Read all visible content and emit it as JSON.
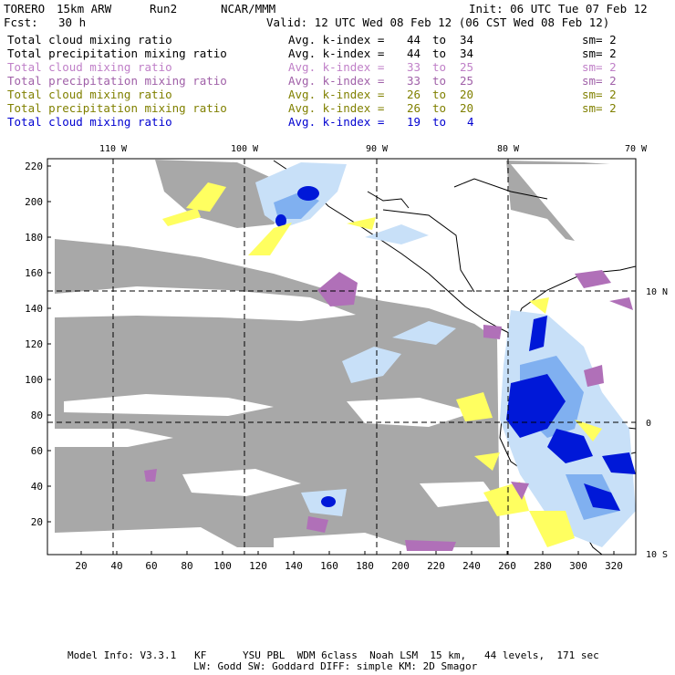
{
  "header": {
    "model": "TORERO",
    "resolution": "15km ARW",
    "run": "Run2",
    "org": "NCAR/MMM",
    "init": "Init: 06 UTC Tue 07 Feb 12",
    "fcst_label": "Fcst:",
    "fcst_value": "30 h",
    "valid": "Valid: 12 UTC Wed 08 Feb 12 (06 CST Wed 08 Feb 12)"
  },
  "legend": [
    {
      "name": "Total cloud mixing ratio",
      "kindex": "Avg. k-index =",
      "k1": "44",
      "to": "to",
      "k2": "34",
      "sm": "sm= 2",
      "color": "#000000"
    },
    {
      "name": "Total precipitation mixing ratio",
      "kindex": "Avg. k-index =",
      "k1": "44",
      "to": "to",
      "k2": "34",
      "sm": "sm= 2",
      "color": "#000000"
    },
    {
      "name": "Total cloud mixing ratio",
      "kindex": "Avg. k-index =",
      "k1": "33",
      "to": "to",
      "k2": "25",
      "sm": "sm= 2",
      "color": "#c080c8"
    },
    {
      "name": "Total precipitation mixing ratio",
      "kindex": "Avg. k-index =",
      "k1": "33",
      "to": "to",
      "k2": "25",
      "sm": "sm= 2",
      "color": "#a060a8"
    },
    {
      "name": "Total cloud mixing ratio",
      "kindex": "Avg. k-index =",
      "k1": "26",
      "to": "to",
      "k2": "20",
      "sm": "sm= 2",
      "color": "#808000"
    },
    {
      "name": "Total precipitation mixing ratio",
      "kindex": "Avg. k-index =",
      "k1": "26",
      "to": "to",
      "k2": "20",
      "sm": "sm= 2",
      "color": "#808000"
    },
    {
      "name": "Total cloud mixing ratio",
      "kindex": "Avg. k-index =",
      "k1": "19",
      "to": "to",
      "k2": "4",
      "sm": "",
      "color": "#0000d0"
    }
  ],
  "map": {
    "top_lon_labels": [
      "110 W",
      "100 W",
      "90 W",
      "80 W",
      "70 W"
    ],
    "right_lat_labels": [
      "10 N",
      "0",
      "10 S"
    ],
    "y_ticks": [
      "220",
      "200",
      "180",
      "160",
      "140",
      "120",
      "100",
      "80",
      "60",
      "40",
      "20"
    ],
    "x_ticks": [
      "20",
      "40",
      "60",
      "80",
      "100",
      "120",
      "140",
      "160",
      "180",
      "200",
      "220",
      "240",
      "260",
      "280",
      "300",
      "320"
    ],
    "colors": {
      "gray": "#a8a8a8",
      "purple": "#b070b8",
      "yellow": "#ffff60",
      "light_blue": "#c8e0f8",
      "mid_blue": "#80b0f0",
      "dark_blue": "#0018d8"
    }
  },
  "footer": {
    "line1": "Model Info: V3.3.1   KF      YSU PBL  WDM 6class  Noah LSM  15 km,   44 levels,  171 sec",
    "line2": "LW: Godd SW: Goddard DIFF: simple KM: 2D Smagor"
  }
}
